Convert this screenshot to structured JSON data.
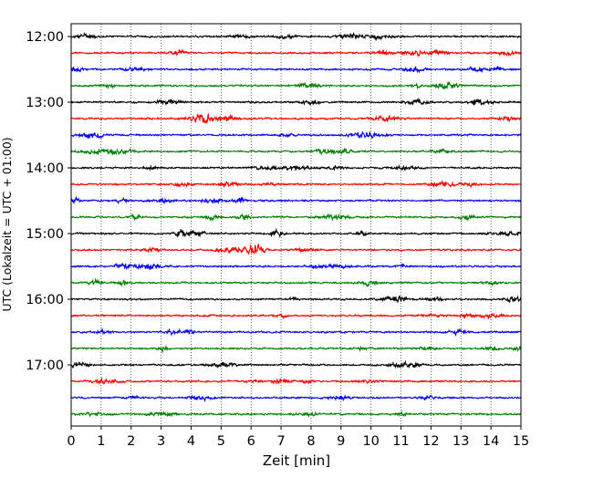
{
  "chart_data": {
    "type": "line",
    "subtype": "helicorder",
    "xlabel": "Zeit  [min]",
    "ylabel": "UTC (Lokalzeit = UTC + 01:00)",
    "xlim": [
      0,
      15
    ],
    "x_ticks": [
      "0",
      "1",
      "2",
      "3",
      "4",
      "5",
      "6",
      "7",
      "8",
      "9",
      "10",
      "11",
      "12",
      "13",
      "14",
      "15"
    ],
    "y_tick_labels": [
      "12:00",
      "13:00",
      "14:00",
      "15:00",
      "16:00",
      "17:00"
    ],
    "y_tick_label_trace_index": [
      0,
      4,
      8,
      12,
      16,
      20
    ],
    "trace_interval_minutes": 15,
    "trace_start_times": [
      "12:00",
      "12:15",
      "12:30",
      "12:45",
      "13:00",
      "13:15",
      "13:30",
      "13:45",
      "14:00",
      "14:15",
      "14:30",
      "14:45",
      "15:00",
      "15:15",
      "15:30",
      "15:45",
      "16:00",
      "16:15",
      "16:30",
      "16:45",
      "17:00",
      "17:15",
      "17:30",
      "17:45"
    ],
    "trace_color_cycle": [
      "#000000",
      "#ff0000",
      "#0000ff",
      "#008000"
    ],
    "grid": "vertical-dotted",
    "legend": "none"
  }
}
